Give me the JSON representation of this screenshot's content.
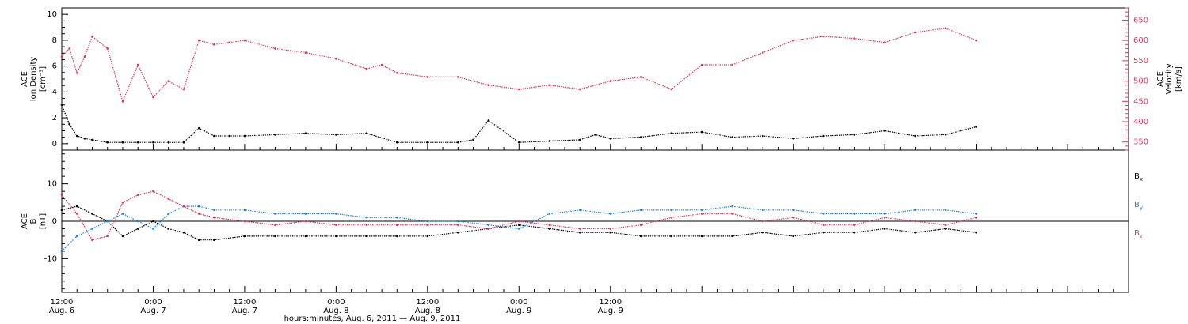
{
  "chart_data": [
    {
      "type": "scatter",
      "panel": "top",
      "ylabel_left": [
        "ACE",
        "Ion Density",
        "[cm⁻³]"
      ],
      "ylabel_right": [
        "ACE",
        "Velocity",
        "[km/s]"
      ],
      "ylim_left": [
        -0.5,
        10.5
      ],
      "ylim_right": [
        330,
        680
      ],
      "yticks_left": [
        0,
        2,
        4,
        6,
        8,
        10
      ],
      "yticks_right": [
        350,
        400,
        450,
        500,
        550,
        600,
        650
      ],
      "colors": {
        "density": "#000000",
        "velocity": "#e8305a"
      },
      "series": [
        {
          "key": "density",
          "axis": "left",
          "x": [
            0,
            1,
            2,
            3,
            4,
            6,
            8,
            10,
            12,
            14,
            16,
            18,
            20,
            22,
            24,
            28,
            32,
            36,
            40,
            44,
            48,
            52,
            54,
            56,
            60,
            64,
            68,
            70,
            72,
            76,
            80,
            84,
            88,
            92,
            96,
            100,
            104,
            108,
            112,
            116,
            120
          ],
          "y": [
            3.0,
            1.5,
            0.6,
            0.4,
            0.3,
            0.1,
            0.1,
            0.1,
            0.1,
            0.1,
            0.1,
            1.2,
            0.6,
            0.6,
            0.6,
            0.7,
            0.8,
            0.7,
            0.8,
            0.1,
            0.1,
            0.1,
            0.3,
            1.8,
            0.1,
            0.2,
            0.3,
            0.7,
            0.4,
            0.5,
            0.8,
            0.9,
            0.5,
            0.6,
            0.4,
            0.6,
            0.7,
            1.0,
            0.6,
            0.7,
            1.3
          ]
        },
        {
          "key": "velocity",
          "axis": "right",
          "x": [
            0,
            1,
            2,
            3,
            4,
            6,
            8,
            10,
            12,
            14,
            16,
            18,
            20,
            22,
            24,
            28,
            32,
            36,
            40,
            42,
            44,
            48,
            52,
            56,
            60,
            64,
            68,
            72,
            76,
            80,
            84,
            88,
            92,
            96,
            100,
            104,
            108,
            112,
            116,
            120
          ],
          "y": [
            560,
            580,
            520,
            560,
            610,
            580,
            450,
            540,
            460,
            500,
            480,
            600,
            590,
            595,
            600,
            580,
            570,
            555,
            530,
            540,
            520,
            510,
            510,
            490,
            480,
            490,
            480,
            500,
            510,
            480,
            540,
            540,
            570,
            600,
            610,
            605,
            595,
            620,
            630,
            600
          ]
        }
      ]
    },
    {
      "type": "scatter",
      "panel": "bottom",
      "ylabel_left": [
        "ACE",
        "B",
        "[nT]"
      ],
      "ylim": [
        -19,
        19
      ],
      "yticks": [
        -10,
        0,
        10
      ],
      "zero_line": true,
      "colors": {
        "Bx": "#000000",
        "By": "#1a82e6",
        "Bz": "#e8305a"
      },
      "series": [
        {
          "key": "Bx",
          "name": "Bx",
          "label_main": "B",
          "label_sub": "x",
          "x": [
            0,
            2,
            4,
            6,
            8,
            10,
            12,
            14,
            16,
            18,
            20,
            24,
            28,
            32,
            36,
            40,
            44,
            48,
            52,
            56,
            60,
            64,
            68,
            72,
            76,
            80,
            84,
            88,
            92,
            96,
            100,
            104,
            108,
            112,
            116,
            120
          ],
          "y": [
            3,
            4,
            2,
            0,
            -4,
            -2,
            0,
            -2,
            -3,
            -5,
            -5,
            -4,
            -4,
            -4,
            -4,
            -4,
            -4,
            -4,
            -3,
            -2,
            -1,
            -2,
            -3,
            -3,
            -4,
            -4,
            -4,
            -4,
            -3,
            -4,
            -3,
            -3,
            -2,
            -3,
            -2,
            -3
          ]
        },
        {
          "key": "By",
          "name": "By",
          "label_main": "B",
          "label_sub": "y",
          "x": [
            0,
            2,
            4,
            6,
            8,
            10,
            12,
            14,
            16,
            18,
            20,
            24,
            28,
            32,
            36,
            40,
            44,
            48,
            52,
            56,
            60,
            64,
            68,
            72,
            76,
            80,
            84,
            88,
            92,
            96,
            100,
            104,
            108,
            112,
            116,
            120
          ],
          "y": [
            -8,
            -4,
            -2,
            0,
            2,
            0,
            -2,
            2,
            4,
            4,
            3,
            3,
            2,
            2,
            2,
            1,
            1,
            0,
            0,
            -1,
            -2,
            2,
            3,
            2,
            3,
            3,
            3,
            4,
            3,
            3,
            2,
            2,
            2,
            3,
            3,
            2
          ]
        },
        {
          "key": "Bz",
          "name": "Bz",
          "label_main": "B",
          "label_sub": "z",
          "x": [
            0,
            2,
            4,
            6,
            8,
            10,
            12,
            14,
            16,
            18,
            20,
            24,
            28,
            32,
            36,
            40,
            44,
            48,
            52,
            56,
            60,
            64,
            68,
            72,
            76,
            80,
            84,
            88,
            92,
            96,
            100,
            104,
            108,
            112,
            116,
            120
          ],
          "y": [
            7,
            2,
            -5,
            -4,
            5,
            7,
            8,
            6,
            4,
            2,
            1,
            0,
            -1,
            0,
            -1,
            -1,
            -1,
            -1,
            -1,
            -2,
            0,
            -1,
            -2,
            -2,
            -1,
            1,
            2,
            2,
            0,
            1,
            -1,
            -1,
            1,
            0,
            -1,
            1
          ]
        }
      ]
    }
  ],
  "x_axis": {
    "range_hours": [
      0,
      140
    ],
    "ticks": [
      {
        "h": 0,
        "time": "12:00",
        "date": "Aug. 6"
      },
      {
        "h": 12,
        "time": "0:00",
        "date": "Aug. 7"
      },
      {
        "h": 24,
        "time": "12:00",
        "date": "Aug. 7"
      },
      {
        "h": 36,
        "time": "0:00",
        "date": "Aug. 8"
      },
      {
        "h": 48,
        "time": "12:00",
        "date": "Aug. 8"
      },
      {
        "h": 60,
        "time": "0:00",
        "date": "Aug. 9"
      },
      {
        "h": 72,
        "time": "12:00",
        "date": "Aug. 9"
      }
    ],
    "title": "hours:minutes, Aug.  6, 2011 — Aug.  9, 2011"
  }
}
